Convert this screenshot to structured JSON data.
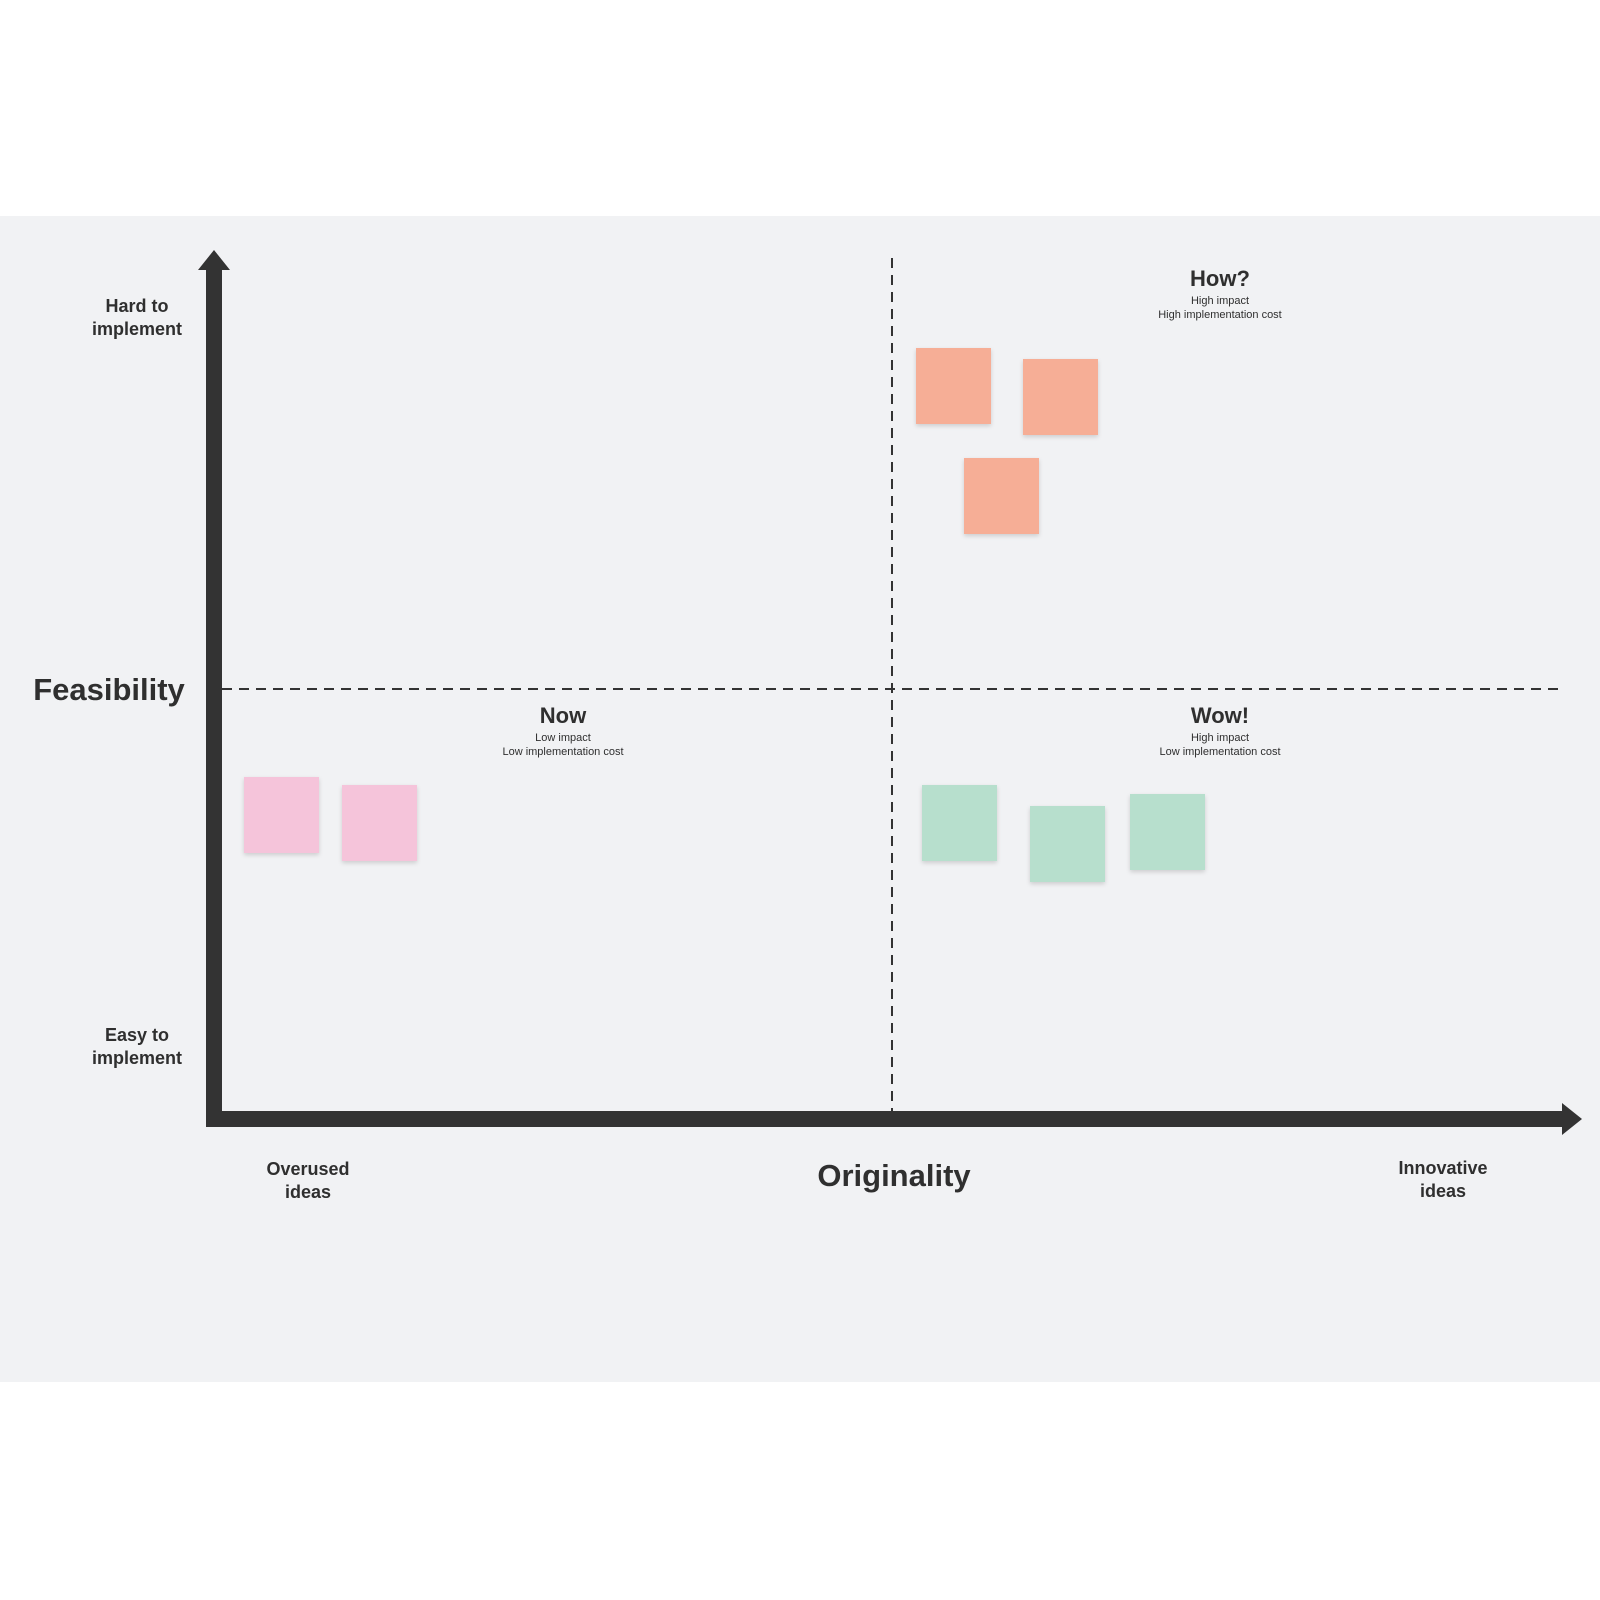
{
  "axes": {
    "y_title": "Feasibility",
    "y_top": [
      "Hard to",
      "implement"
    ],
    "y_bottom": [
      "Easy to",
      "implement"
    ],
    "x_title": "Originality",
    "x_left": [
      "Overused",
      "ideas"
    ],
    "x_right": [
      "Innovative",
      "ideas"
    ]
  },
  "quadrants": [
    {
      "title": "How?",
      "lines": [
        "High impact",
        "High implementation cost"
      ]
    },
    {
      "title": "Now",
      "lines": [
        "Low impact",
        "Low implementation cost"
      ]
    },
    {
      "title": "Wow!",
      "lines": [
        "High impact",
        "Low implementation cost"
      ]
    }
  ]
}
